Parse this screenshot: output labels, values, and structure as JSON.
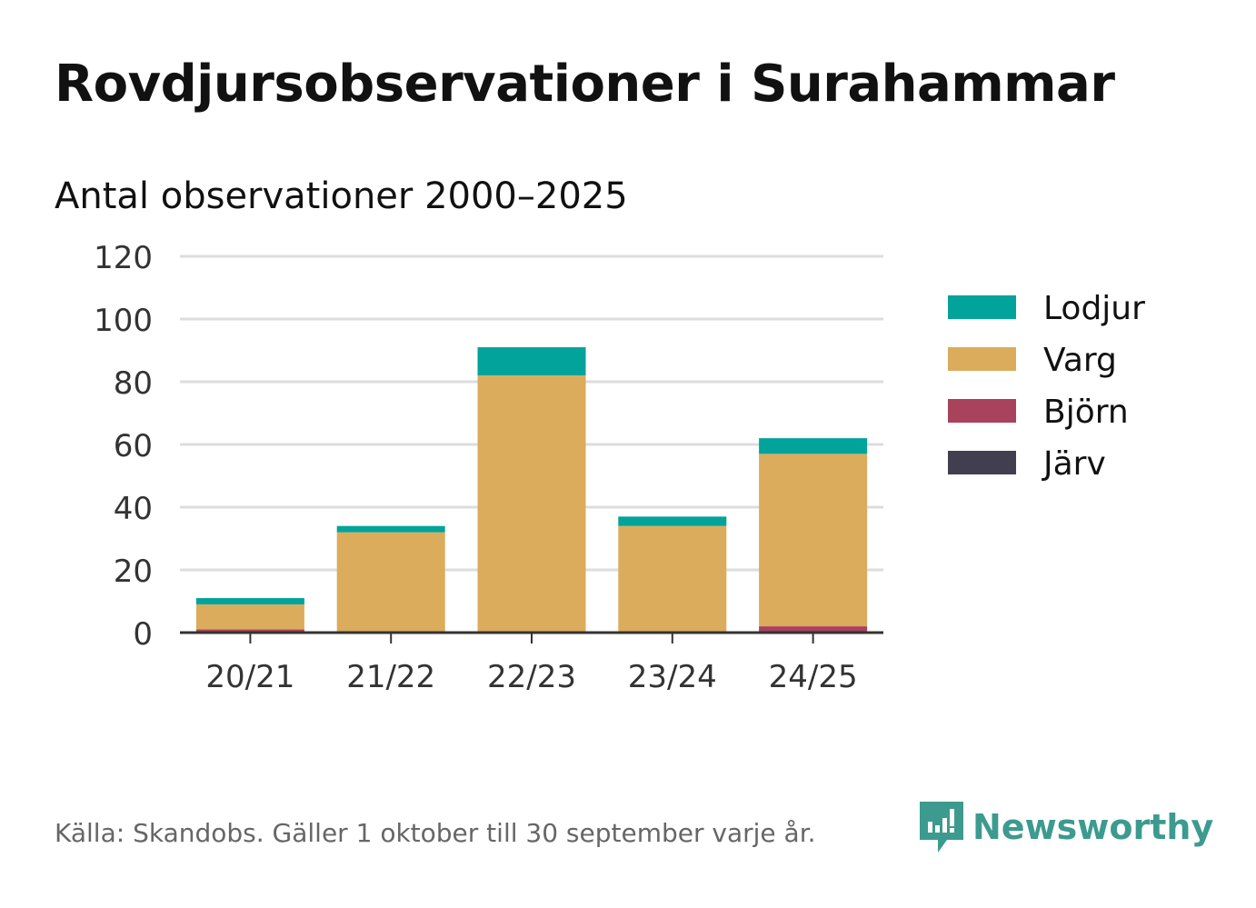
{
  "title": "Rovdjursobservationer i Surahammar",
  "subtitle": "Antal observationer 2000–2025",
  "source": "Källa: Skandobs. Gäller 1 oktober till 30 september varje år.",
  "brand": "Newsworthy",
  "chart_data": {
    "type": "bar",
    "stacked": true,
    "categories": [
      "20/21",
      "21/22",
      "22/23",
      "23/24",
      "24/25"
    ],
    "series": [
      {
        "name": "Järv",
        "color": "#403e4f",
        "values": [
          0,
          0,
          0,
          0,
          0
        ]
      },
      {
        "name": "Björn",
        "color": "#a8425d",
        "values": [
          1,
          0,
          0,
          0,
          2
        ]
      },
      {
        "name": "Varg",
        "color": "#dbac5c",
        "values": [
          8,
          32,
          82,
          34,
          55
        ]
      },
      {
        "name": "Lodjur",
        "color": "#01a39a",
        "values": [
          2,
          2,
          9,
          3,
          5
        ]
      }
    ],
    "legend_order": [
      "Lodjur",
      "Varg",
      "Björn",
      "Järv"
    ],
    "legend_position": "right",
    "ylim": [
      0,
      120
    ],
    "yticks": [
      0,
      20,
      40,
      60,
      80,
      100,
      120
    ],
    "grid": true
  }
}
